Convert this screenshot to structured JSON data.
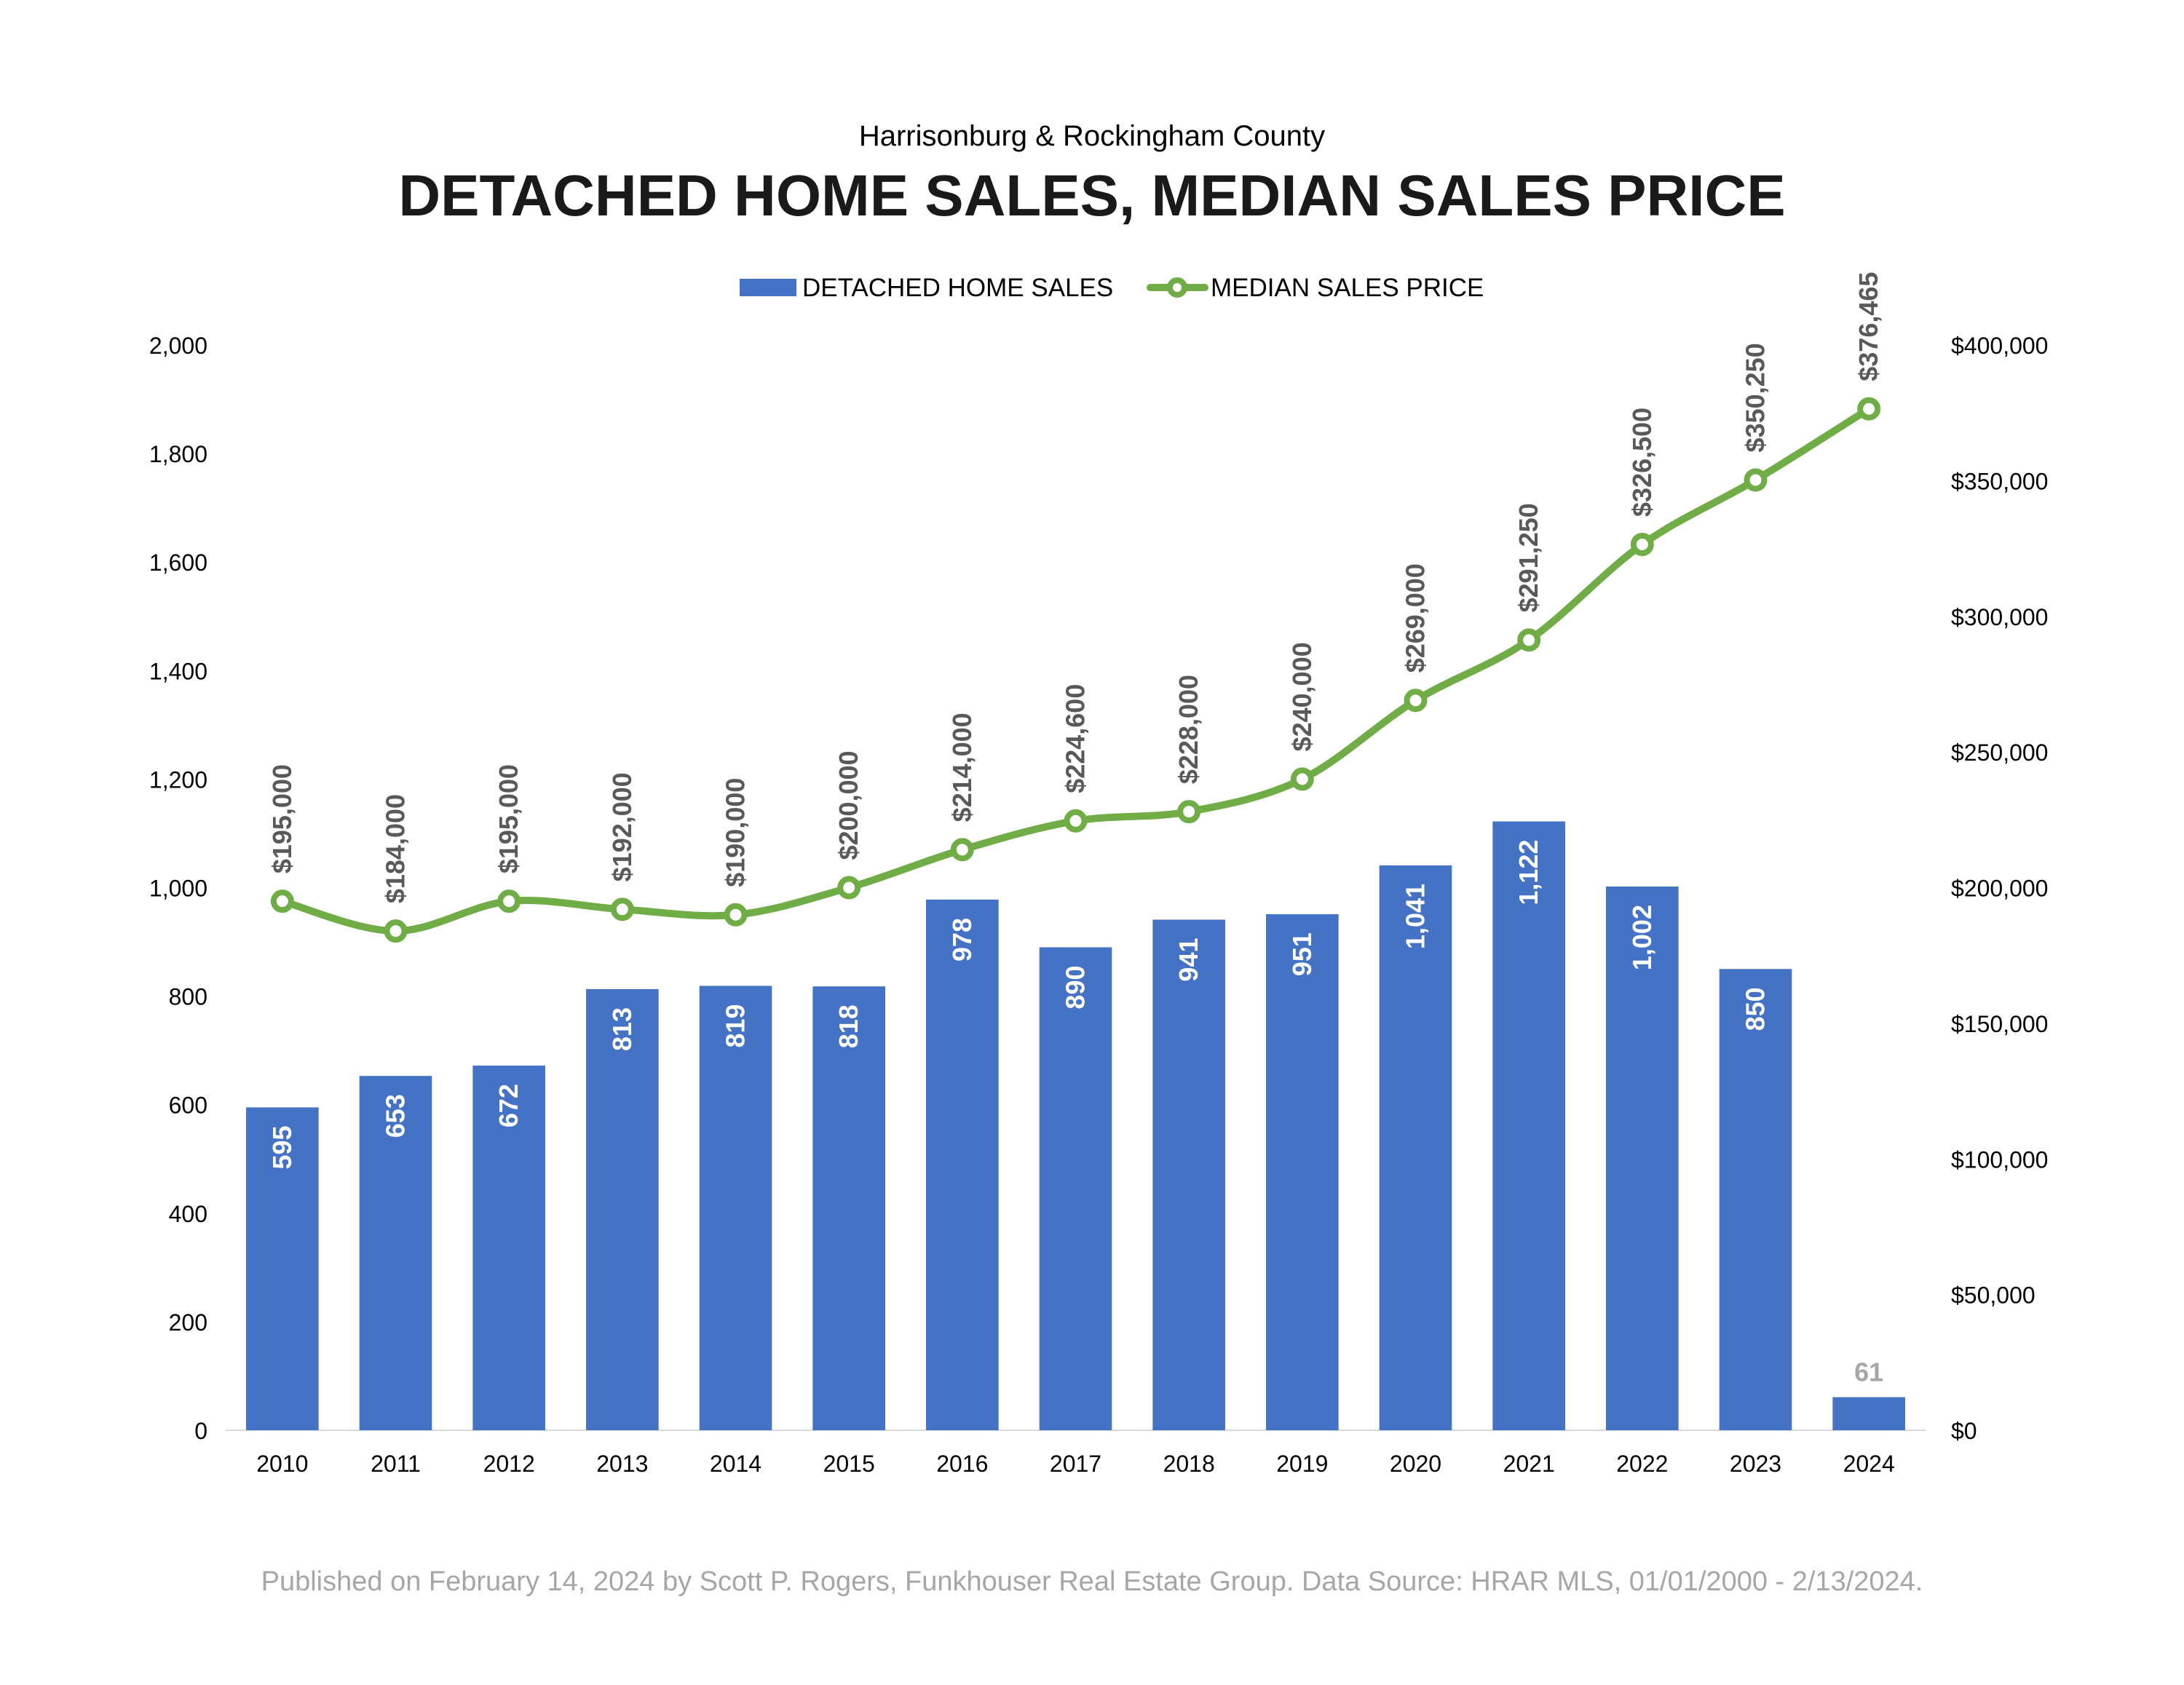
{
  "header": {
    "subtitle": "Harrisonburg & Rockingham County",
    "title": "DETACHED HOME SALES, MEDIAN SALES PRICE"
  },
  "footer": {
    "note": "Published on February 14, 2024 by Scott P. Rogers, Funkhouser Real Estate Group. Data Source: HRAR MLS, 01/01/2000 - 2/13/2024."
  },
  "colors": {
    "bar": "#4472C4",
    "line": "#70AD47",
    "axis_text": "#000000",
    "label_dark": "#595959",
    "last_bar_label": "#A6A6A6",
    "bar_label": "#FFFFFF",
    "footer": "#A6A6A6",
    "axis_line": "#D9D9D9"
  },
  "chart_data": {
    "type": "bar",
    "title": "DETACHED HOME SALES, MEDIAN SALES PRICE",
    "subtitle": "Harrisonburg & Rockingham County",
    "categories": [
      "2010",
      "2011",
      "2012",
      "2013",
      "2014",
      "2015",
      "2016",
      "2017",
      "2018",
      "2019",
      "2020",
      "2021",
      "2022",
      "2023",
      "2024"
    ],
    "series": [
      {
        "name": "DETACHED HOME SALES",
        "type": "bar",
        "axis": "left",
        "values": [
          595,
          653,
          672,
          813,
          819,
          818,
          978,
          890,
          941,
          951,
          1041,
          1122,
          1002,
          850,
          61
        ],
        "labels": [
          "595",
          "653",
          "672",
          "813",
          "819",
          "818",
          "978",
          "890",
          "941",
          "951",
          "1,041",
          "1,122",
          "1,002",
          "850",
          "61"
        ]
      },
      {
        "name": "MEDIAN SALES PRICE",
        "type": "line",
        "axis": "right",
        "values": [
          195000,
          184000,
          195000,
          192000,
          190000,
          200000,
          214000,
          224600,
          228000,
          240000,
          269000,
          291250,
          326500,
          350250,
          376465
        ],
        "labels": [
          "$195,000",
          "$184,000",
          "$195,000",
          "$192,000",
          "$190,000",
          "$200,000",
          "$214,000",
          "$224,600",
          "$228,000",
          "$240,000",
          "$269,000",
          "$291,250",
          "$326,500",
          "$350,250",
          "$376,465"
        ]
      }
    ],
    "y_left": {
      "ylim": [
        0,
        2000
      ],
      "ticks": [
        "0",
        "200",
        "400",
        "600",
        "800",
        "1,000",
        "1,200",
        "1,400",
        "1,600",
        "1,800",
        "2,000"
      ]
    },
    "y_right": {
      "ylim": [
        0,
        400000
      ],
      "ticks": [
        "$0",
        "$50,000",
        "$100,000",
        "$150,000",
        "$200,000",
        "$250,000",
        "$300,000",
        "$350,000",
        "$400,000"
      ]
    },
    "grid": false,
    "legend": "top"
  }
}
